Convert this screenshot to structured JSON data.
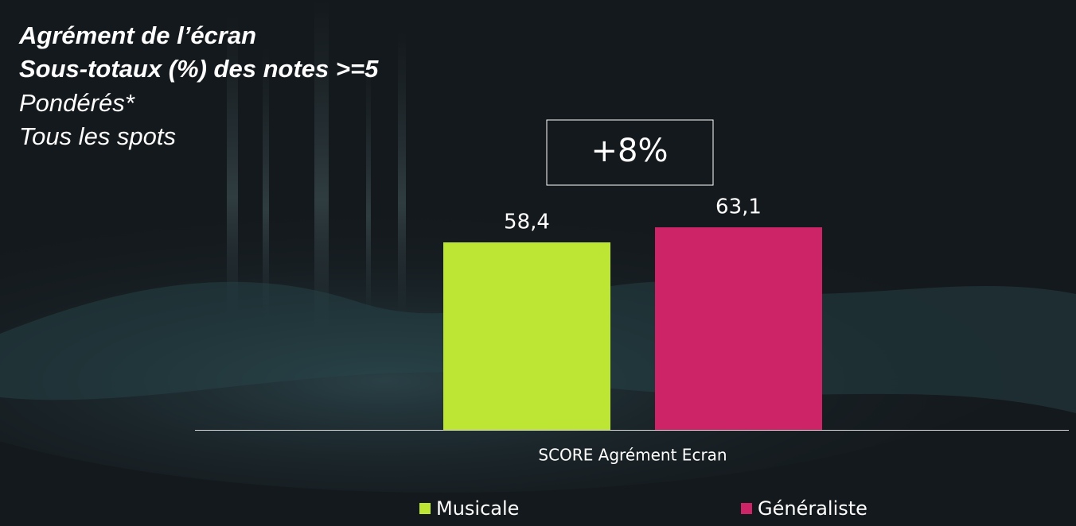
{
  "chart_data": {
    "type": "bar",
    "title": [
      "Agrément de l’écran",
      "Sous-totaux (%) des notes >=5"
    ],
    "subtitle": [
      "Pondérés*",
      "Tous les spots"
    ],
    "annotation": "+8%",
    "categories": [
      "SCORE Agrément Ecran"
    ],
    "series": [
      {
        "name": "Musicale",
        "color": "#bde634",
        "values": [
          58.4
        ],
        "value_labels": [
          "58,4"
        ]
      },
      {
        "name": "Généraliste",
        "color": "#cc2466",
        "values": [
          63.1
        ],
        "value_labels": [
          "63,1"
        ]
      }
    ]
  }
}
